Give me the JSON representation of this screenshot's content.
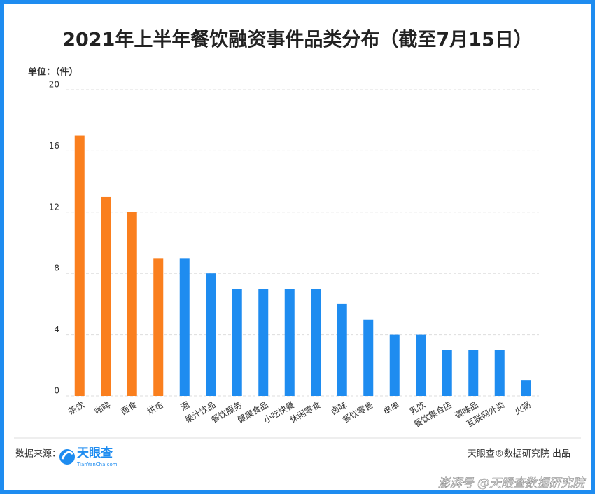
{
  "chart_data": {
    "type": "bar",
    "title": "2021年上半年餐饮融资事件品类分布（截至7月15日）",
    "unit_label": "单位：（件）",
    "categories": [
      "茶饮",
      "咖啡",
      "面食",
      "烘焙",
      "酒",
      "果汁饮品",
      "餐饮服务",
      "健康食品",
      "小吃快餐",
      "休闲零食",
      "卤味",
      "餐饮零售",
      "串串",
      "乳饮",
      "餐饮集合店",
      "调味品",
      "互联网外卖",
      "火锅"
    ],
    "values": [
      17,
      13,
      12,
      9,
      9,
      8,
      7,
      7,
      7,
      7,
      6,
      5,
      4,
      4,
      3,
      3,
      3,
      1
    ],
    "colors": [
      "#fa7f1e",
      "#fa7f1e",
      "#fa7f1e",
      "#fa7f1e",
      "#1e8cf0",
      "#1e8cf0",
      "#1e8cf0",
      "#1e8cf0",
      "#1e8cf0",
      "#1e8cf0",
      "#1e8cf0",
      "#1e8cf0",
      "#1e8cf0",
      "#1e8cf0",
      "#1e8cf0",
      "#1e8cf0",
      "#1e8cf0",
      "#1e8cf0"
    ],
    "ylim": [
      0,
      20
    ],
    "yticks": [
      0,
      4,
      8,
      12,
      16,
      20
    ],
    "grid": true
  },
  "footer": {
    "source_label": "数据来源：",
    "logo_name": "天眼查",
    "logo_url": "TianYanCha.com",
    "credit": "天眼查®数据研究院 出品",
    "watermark": "澎湃号 @天眼查数据研究院"
  }
}
